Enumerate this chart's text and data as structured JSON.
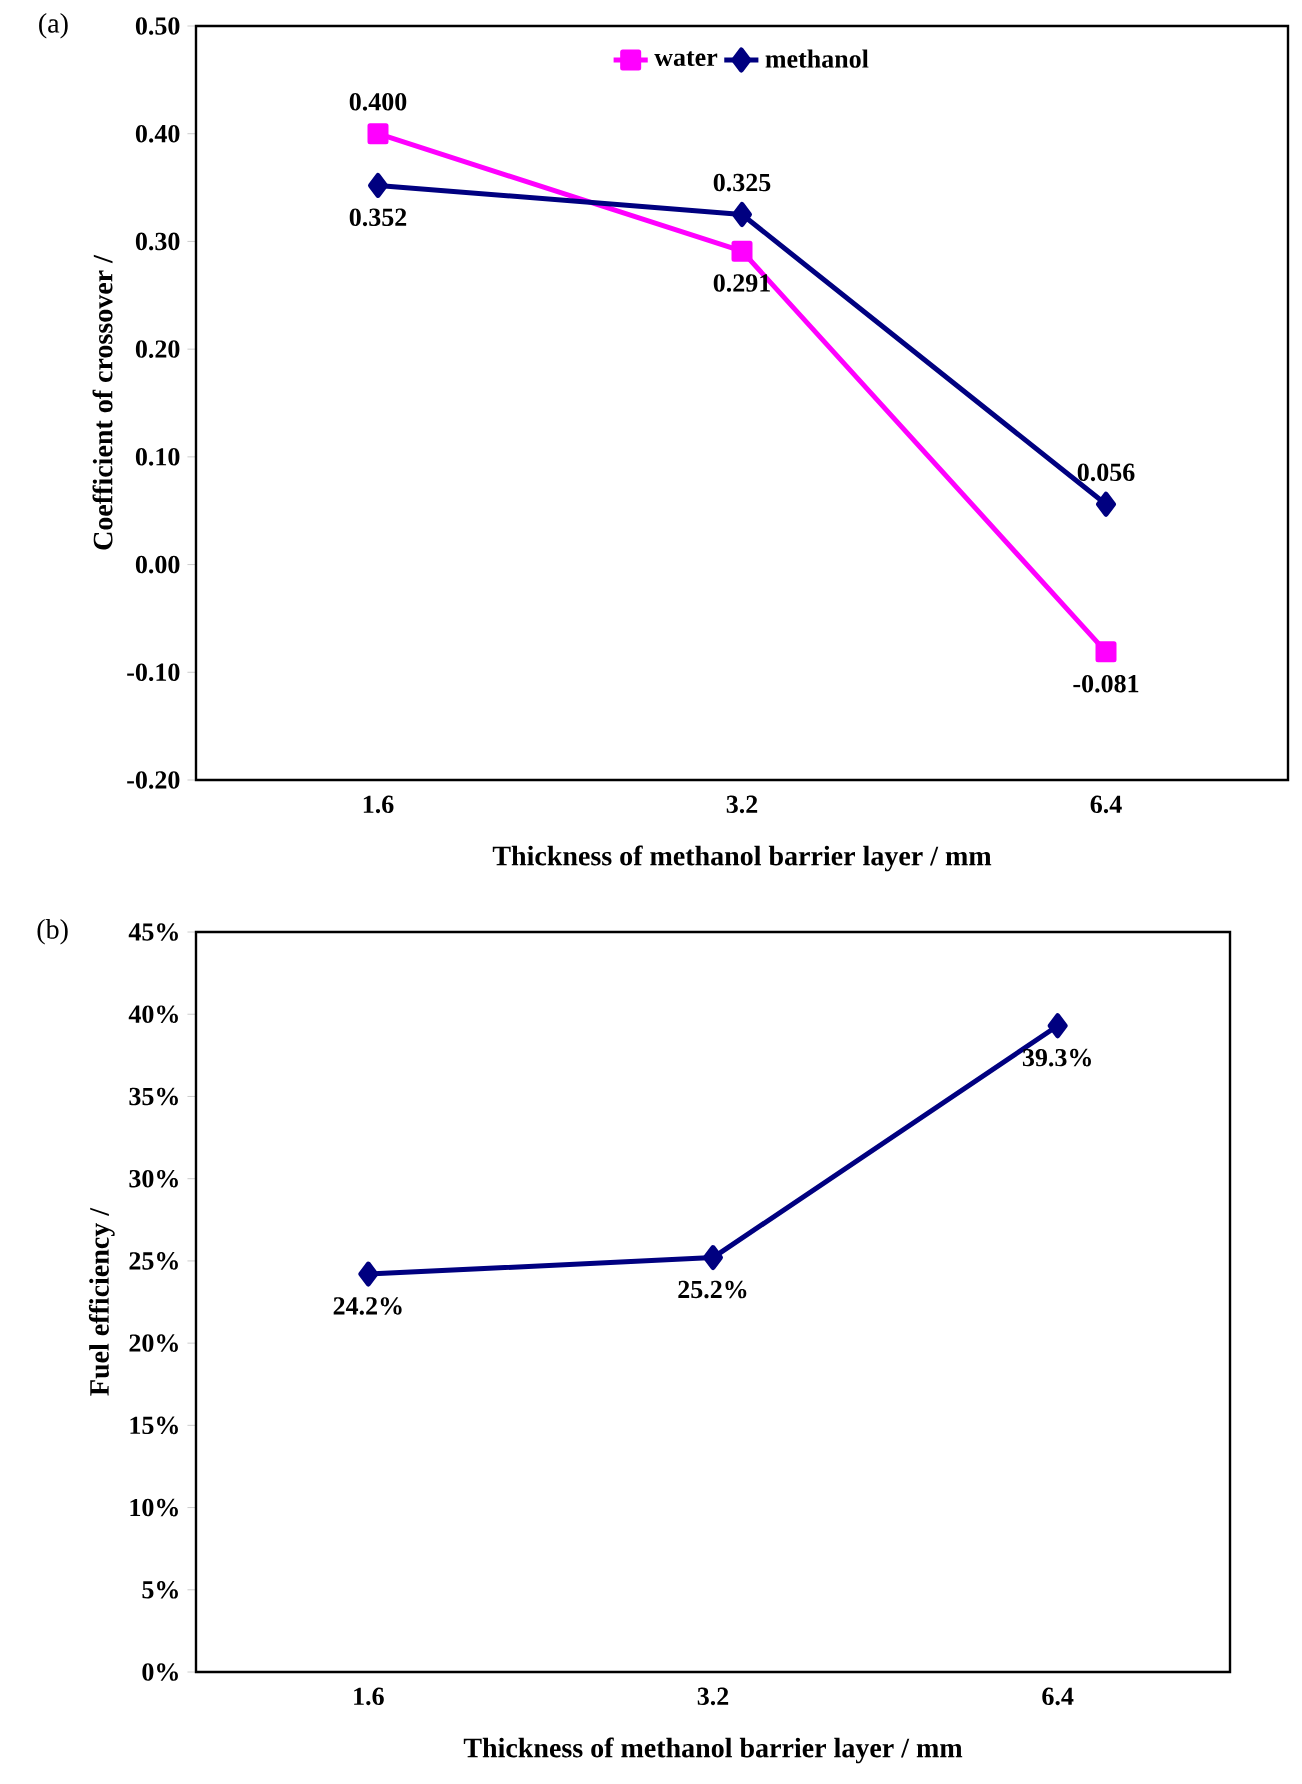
{
  "chart_data": [
    {
      "type": "line",
      "title": "(a)",
      "xlabel": "Thickness of methanol barrier layer / mm",
      "ylabel": "Coefficient of crossover /",
      "categories": [
        "1.6",
        "3.2",
        "6.4"
      ],
      "series": [
        {
          "name": "water",
          "color": "#ff00ff",
          "marker": "square",
          "values": [
            0.4,
            0.291,
            -0.081
          ],
          "value_labels": [
            "0.400",
            "0.291",
            "-0.081"
          ]
        },
        {
          "name": "methanol",
          "color": "#000080",
          "marker": "diamond",
          "values": [
            0.352,
            0.325,
            0.056
          ],
          "value_labels": [
            "0.352",
            "0.325",
            "0.056"
          ]
        }
      ],
      "ylim": [
        -0.2,
        0.5
      ],
      "yticks": [
        {
          "value": -0.2,
          "label": "-0.20"
        },
        {
          "value": -0.1,
          "label": "-0.10"
        },
        {
          "value": 0,
          "label": "0.00"
        },
        {
          "value": 0.1,
          "label": "0.10"
        },
        {
          "value": 0.2,
          "label": "0.20"
        },
        {
          "value": 0.3,
          "label": "0.30"
        },
        {
          "value": 0.4,
          "label": "0.40"
        },
        {
          "value": 0.5,
          "label": "0.50"
        }
      ],
      "legend": "top",
      "line_style": "solid"
    },
    {
      "type": "line",
      "title": "(b)",
      "xlabel": "Thickness of methanol barrier layer / mm",
      "ylabel": "Fuel efficiency /",
      "categories": [
        "1.6",
        "3.2",
        "6.4"
      ],
      "series": [
        {
          "color": "#000080",
          "marker": "diamond",
          "values": [
            24.2,
            25.2,
            39.3
          ],
          "value_labels": [
            "24.2%",
            "25.2%",
            "39.3%"
          ]
        }
      ],
      "ylim": [
        0,
        45
      ],
      "yticks": [
        {
          "value": 0,
          "label": "0%"
        },
        {
          "value": 5,
          "label": "5%"
        },
        {
          "value": 10,
          "label": "10%"
        },
        {
          "value": 15,
          "label": "15%"
        },
        {
          "value": 20,
          "label": "20%"
        },
        {
          "value": 25,
          "label": "25%"
        },
        {
          "value": 30,
          "label": "30%"
        },
        {
          "value": 35,
          "label": "35%"
        },
        {
          "value": 40,
          "label": "40%"
        },
        {
          "value": 45,
          "label": "45%"
        }
      ],
      "legend": false,
      "line_style": "solid"
    }
  ]
}
